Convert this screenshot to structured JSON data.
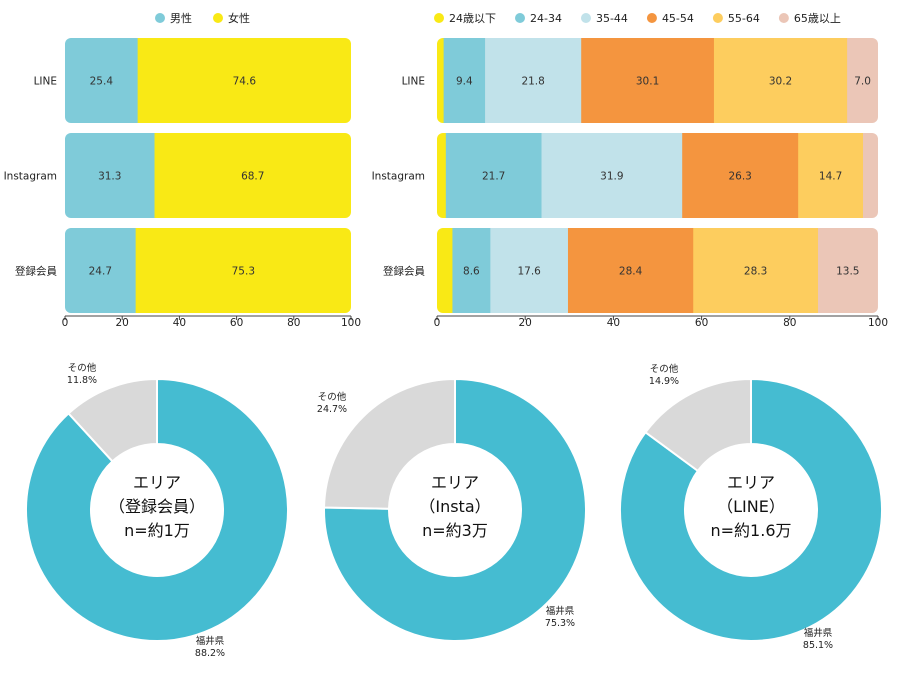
{
  "chart_data": [
    {
      "type": "bar",
      "orientation": "horizontal",
      "stacked": true,
      "categories": [
        "LINE",
        "Instagram",
        "登録会員"
      ],
      "series": [
        {
          "name": "男性",
          "color": "#7fcbd9",
          "values": [
            25.4,
            31.3,
            24.7
          ]
        },
        {
          "name": "女性",
          "color": "#f9e915",
          "values": [
            74.6,
            68.7,
            75.3
          ]
        }
      ],
      "xlim": [
        0,
        100
      ],
      "xticks": [
        "0",
        "20",
        "40",
        "60",
        "80",
        "100"
      ],
      "legend": "top",
      "data_labels": [
        [
          "25.4",
          "74.6"
        ],
        [
          "31.3",
          "68.7"
        ],
        [
          "24.7",
          "75.3"
        ]
      ]
    },
    {
      "type": "bar",
      "orientation": "horizontal",
      "stacked": true,
      "categories": [
        "LINE",
        "Instagram",
        "登録会員"
      ],
      "series": [
        {
          "name": "24歳以下",
          "color": "#f9e915",
          "values": [
            1.5,
            2.0,
            3.5
          ]
        },
        {
          "name": "24-34",
          "color": "#7fcbd9",
          "values": [
            9.4,
            21.7,
            8.6
          ]
        },
        {
          "name": "35-44",
          "color": "#c1e2ea",
          "values": [
            21.8,
            31.9,
            17.6
          ]
        },
        {
          "name": "45-54",
          "color": "#f4953f",
          "values": [
            30.1,
            26.3,
            28.4
          ]
        },
        {
          "name": "55-64",
          "color": "#fdcd5e",
          "values": [
            30.2,
            14.7,
            28.3
          ]
        },
        {
          "name": "65歳以上",
          "color": "#ebc6b7",
          "values": [
            7.0,
            3.4,
            13.5
          ]
        }
      ],
      "xlim": [
        0,
        100
      ],
      "xticks": [
        "0",
        "20",
        "40",
        "60",
        "80",
        "100"
      ],
      "legend": "top",
      "data_labels": [
        [
          "",
          "9.4",
          "21.8",
          "30.1",
          "30.2",
          "7.0"
        ],
        [
          "",
          "21.7",
          "31.9",
          "26.3",
          "14.7",
          ""
        ],
        [
          "",
          "8.6",
          "17.6",
          "28.4",
          "28.3",
          "13.5"
        ]
      ]
    },
    {
      "type": "pie",
      "donut": true,
      "center_label": [
        "エリア",
        "（登録会員）",
        "n=約1万"
      ],
      "slices": [
        {
          "label": "福井県",
          "value": 88.2,
          "display": "88.2%",
          "color": "#45bcd1"
        },
        {
          "label": "その他",
          "value": 11.8,
          "display": "11.8%",
          "color": "#d9d9d9"
        }
      ]
    },
    {
      "type": "pie",
      "donut": true,
      "center_label": [
        "エリア",
        "（Insta）",
        "n=約3万"
      ],
      "slices": [
        {
          "label": "福井県",
          "value": 75.3,
          "display": "75.3%",
          "color": "#45bcd1"
        },
        {
          "label": "その他",
          "value": 24.7,
          "display": "24.7%",
          "color": "#d9d9d9"
        }
      ]
    },
    {
      "type": "pie",
      "donut": true,
      "center_label": [
        "エリア",
        "（LINE）",
        "n=約1.6万"
      ],
      "slices": [
        {
          "label": "福井県",
          "value": 85.1,
          "display": "85.1%",
          "color": "#45bcd1"
        },
        {
          "label": "その他",
          "value": 14.9,
          "display": "14.9%",
          "color": "#d9d9d9"
        }
      ]
    }
  ]
}
